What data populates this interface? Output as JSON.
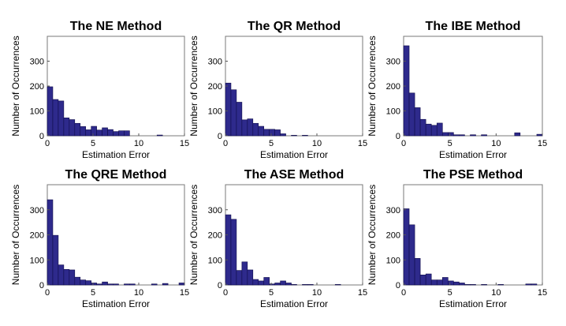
{
  "figure": {
    "background": "#ffffff",
    "bar_fill": "#2e2a8c",
    "bar_stroke": "#0f0c4a"
  },
  "chart_data": [
    {
      "type": "bar",
      "title": "The NE Method",
      "xlabel": "Estimation Error",
      "ylabel": "Number of Occurrences",
      "xlim": [
        0,
        15
      ],
      "ylim": [
        0,
        400
      ],
      "xticks": [
        0,
        5,
        10,
        15
      ],
      "yticks": [
        0,
        100,
        200,
        300
      ],
      "bin_width": 0.6,
      "bin_starts": [
        0,
        0.6,
        1.2,
        1.8,
        2.4,
        3.0,
        3.6,
        4.2,
        4.8,
        5.4,
        6.0,
        6.6,
        7.2,
        7.8,
        8.4,
        9.0,
        9.6,
        10.2,
        10.8,
        11.4,
        12.0,
        12.6,
        13.2,
        13.8,
        14.4
      ],
      "values": [
        197,
        146,
        140,
        72,
        65,
        50,
        37,
        24,
        38,
        23,
        32,
        25,
        17,
        20,
        20,
        0,
        0,
        0,
        0,
        0,
        3,
        0,
        0,
        0,
        0
      ]
    },
    {
      "type": "bar",
      "title": "The QR Method",
      "xlabel": "Estimation Error",
      "ylabel": "Number of Occurrences",
      "xlim": [
        0,
        15
      ],
      "ylim": [
        0,
        400
      ],
      "xticks": [
        0,
        5,
        10,
        15
      ],
      "yticks": [
        0,
        100,
        200,
        300
      ],
      "bin_width": 0.6,
      "bin_starts": [
        0,
        0.6,
        1.2,
        1.8,
        2.4,
        3.0,
        3.6,
        4.2,
        4.8,
        5.4,
        6.0,
        6.6,
        7.2,
        7.8,
        8.4,
        9.0,
        9.6,
        10.2,
        10.8,
        11.4,
        12.0,
        12.6,
        13.2,
        13.8,
        14.4
      ],
      "values": [
        212,
        185,
        135,
        64,
        68,
        50,
        38,
        26,
        26,
        24,
        8,
        0,
        2,
        0,
        2,
        0,
        0,
        0,
        0,
        0,
        0,
        0,
        0,
        0,
        0
      ]
    },
    {
      "type": "bar",
      "title": "The IBE Method",
      "xlabel": "Estimation Error",
      "ylabel": "Number of Occurrences",
      "xlim": [
        0,
        15
      ],
      "ylim": [
        0,
        400
      ],
      "xticks": [
        0,
        5,
        10,
        15
      ],
      "yticks": [
        0,
        100,
        200,
        300
      ],
      "bin_width": 0.6,
      "bin_starts": [
        0,
        0.6,
        1.2,
        1.8,
        2.4,
        3.0,
        3.6,
        4.2,
        4.8,
        5.4,
        6.0,
        6.6,
        7.2,
        7.8,
        8.4,
        9.0,
        9.6,
        10.2,
        10.8,
        11.4,
        12.0,
        12.6,
        13.2,
        13.8,
        14.4
      ],
      "values": [
        362,
        172,
        113,
        66,
        47,
        42,
        51,
        13,
        13,
        4,
        4,
        0,
        4,
        0,
        4,
        0,
        0,
        0,
        0,
        0,
        12,
        0,
        0,
        0,
        6
      ]
    },
    {
      "type": "bar",
      "title": "The QRE Method",
      "xlabel": "Estimation Error",
      "ylabel": "Number of Occurrences",
      "xlim": [
        0,
        15
      ],
      "ylim": [
        0,
        400
      ],
      "xticks": [
        0,
        5,
        10,
        15
      ],
      "yticks": [
        0,
        100,
        200,
        300
      ],
      "bin_width": 0.6,
      "bin_starts": [
        0,
        0.6,
        1.2,
        1.8,
        2.4,
        3.0,
        3.6,
        4.2,
        4.8,
        5.4,
        6.0,
        6.6,
        7.2,
        7.8,
        8.4,
        9.0,
        9.6,
        10.2,
        10.8,
        11.4,
        12.0,
        12.6,
        13.2,
        13.8,
        14.4
      ],
      "values": [
        340,
        198,
        80,
        62,
        60,
        31,
        20,
        17,
        8,
        4,
        12,
        4,
        4,
        0,
        4,
        4,
        0,
        0,
        0,
        4,
        0,
        6,
        0,
        0,
        8
      ]
    },
    {
      "type": "bar",
      "title": "The ASE Method",
      "xlabel": "Estimation Error",
      "ylabel": "Number of Occurrences",
      "xlim": [
        0,
        15
      ],
      "ylim": [
        0,
        400
      ],
      "xticks": [
        0,
        5,
        10,
        15
      ],
      "yticks": [
        0,
        100,
        200,
        300
      ],
      "bin_width": 0.6,
      "bin_starts": [
        0,
        0.6,
        1.2,
        1.8,
        2.4,
        3.0,
        3.6,
        4.2,
        4.8,
        5.4,
        6.0,
        6.6,
        7.2,
        7.8,
        8.4,
        9.0,
        9.6,
        10.2,
        10.8,
        11.4,
        12.0,
        12.6,
        13.2,
        13.8,
        14.4
      ],
      "values": [
        280,
        262,
        58,
        92,
        60,
        22,
        16,
        30,
        4,
        8,
        16,
        8,
        2,
        0,
        2,
        2,
        0,
        0,
        0,
        0,
        2,
        0,
        0,
        0,
        0
      ]
    },
    {
      "type": "bar",
      "title": "The PSE Method",
      "xlabel": "Estimation Error",
      "ylabel": "Number of Occurrences",
      "xlim": [
        0,
        15
      ],
      "ylim": [
        0,
        400
      ],
      "xticks": [
        0,
        5,
        10,
        15
      ],
      "yticks": [
        0,
        100,
        200,
        300
      ],
      "bin_width": 0.6,
      "bin_starts": [
        0,
        0.6,
        1.2,
        1.8,
        2.4,
        3.0,
        3.6,
        4.2,
        4.8,
        5.4,
        6.0,
        6.6,
        7.2,
        7.8,
        8.4,
        9.0,
        9.6,
        10.2,
        10.8,
        11.4,
        12.0,
        12.6,
        13.2,
        13.8,
        14.4
      ],
      "values": [
        304,
        240,
        106,
        40,
        44,
        20,
        20,
        30,
        16,
        12,
        8,
        2,
        2,
        0,
        2,
        0,
        0,
        2,
        0,
        0,
        0,
        0,
        4,
        4,
        0
      ]
    }
  ]
}
